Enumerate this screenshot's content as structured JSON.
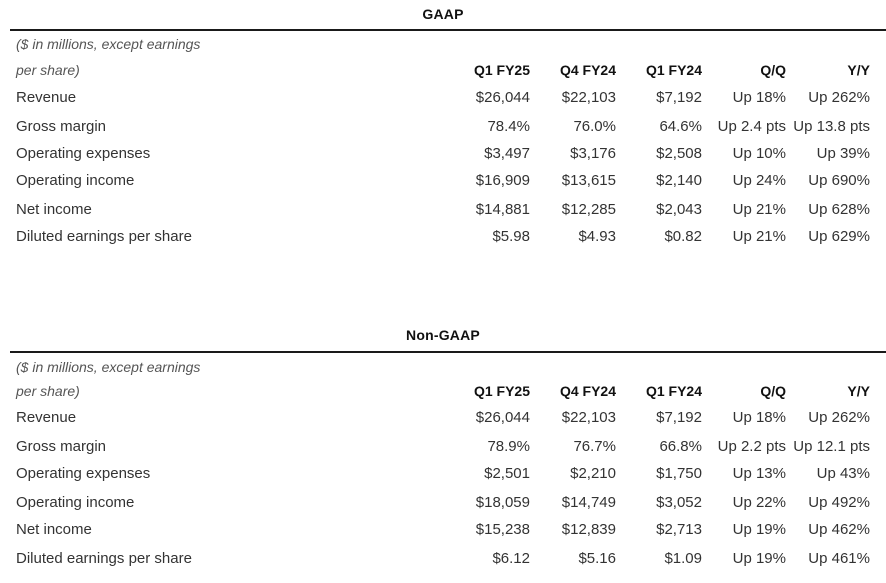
{
  "gaap": {
    "title": "GAAP",
    "note_line1": "($ in millions, except earnings",
    "note_line2": "per share)",
    "headers": [
      "Q1 FY25",
      "Q4 FY24",
      "Q1 FY24",
      "Q/Q",
      "Y/Y"
    ],
    "rows": [
      {
        "label": "Revenue",
        "values": [
          "$26,044",
          "$22,103",
          "$7,192",
          "Up 18%",
          "Up 262%"
        ]
      },
      {
        "label": "Gross margin",
        "values": [
          "78.4%",
          "76.0%",
          "64.6%",
          "Up 2.4 pts",
          "Up 13.8 pts"
        ]
      },
      {
        "label": "Operating expenses",
        "values": [
          "$3,497",
          "$3,176",
          "$2,508",
          "Up 10%",
          "Up 39%"
        ]
      },
      {
        "label": "Operating income",
        "values": [
          "$16,909",
          "$13,615",
          "$2,140",
          "Up 24%",
          "Up 690%"
        ]
      },
      {
        "label": "Net income",
        "values": [
          "$14,881",
          "$12,285",
          "$2,043",
          "Up 21%",
          "Up 628%"
        ]
      },
      {
        "label": "Diluted earnings per share",
        "values": [
          "$5.98",
          "$4.93",
          "$0.82",
          "Up 21%",
          "Up 629%"
        ]
      }
    ]
  },
  "nongaap": {
    "title": "Non-GAAP",
    "note_line1": "($ in millions, except earnings",
    "note_line2": "per share)",
    "headers": [
      "Q1 FY25",
      "Q4 FY24",
      "Q1 FY24",
      "Q/Q",
      "Y/Y"
    ],
    "rows": [
      {
        "label": "Revenue",
        "values": [
          "$26,044",
          "$22,103",
          "$7,192",
          "Up 18%",
          "Up 262%"
        ]
      },
      {
        "label": "Gross margin",
        "values": [
          "78.9%",
          "76.7%",
          "66.8%",
          "Up 2.2 pts",
          "Up 12.1 pts"
        ]
      },
      {
        "label": "Operating expenses",
        "values": [
          "$2,501",
          "$2,210",
          "$1,750",
          "Up 13%",
          "Up 43%"
        ]
      },
      {
        "label": "Operating income",
        "values": [
          "$18,059",
          "$14,749",
          "$3,052",
          "Up 22%",
          "Up 492%"
        ]
      },
      {
        "label": "Net income",
        "values": [
          "$15,238",
          "$12,839",
          "$2,713",
          "Up 19%",
          "Up 462%"
        ]
      },
      {
        "label": "Diluted earnings per share",
        "values": [
          "$6.12",
          "$5.16",
          "$1.09",
          "Up 19%",
          "Up 461%"
        ]
      }
    ]
  }
}
